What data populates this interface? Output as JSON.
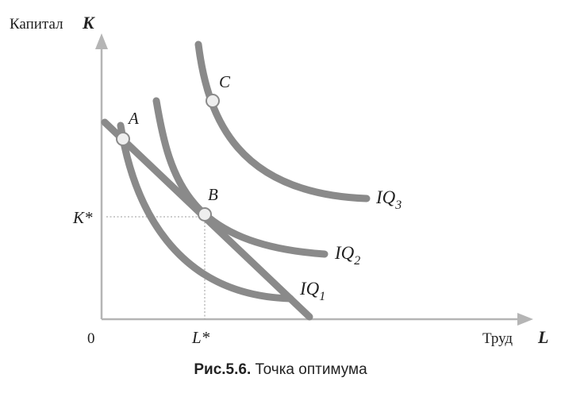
{
  "axes": {
    "y_label": "Капитал",
    "y_letter": "K",
    "x_label": "Труд",
    "x_letter": "L",
    "origin": "0",
    "k_star": "K*",
    "l_star": "L*"
  },
  "points": [
    {
      "label": "A"
    },
    {
      "label": "B"
    },
    {
      "label": "C"
    }
  ],
  "curves": [
    {
      "label": "IQ",
      "index": "1"
    },
    {
      "label": "IQ",
      "index": "2"
    },
    {
      "label": "IQ",
      "index": "3"
    }
  ],
  "caption": {
    "number": "Рис.5.6.",
    "title": "Точка оптимума"
  }
}
